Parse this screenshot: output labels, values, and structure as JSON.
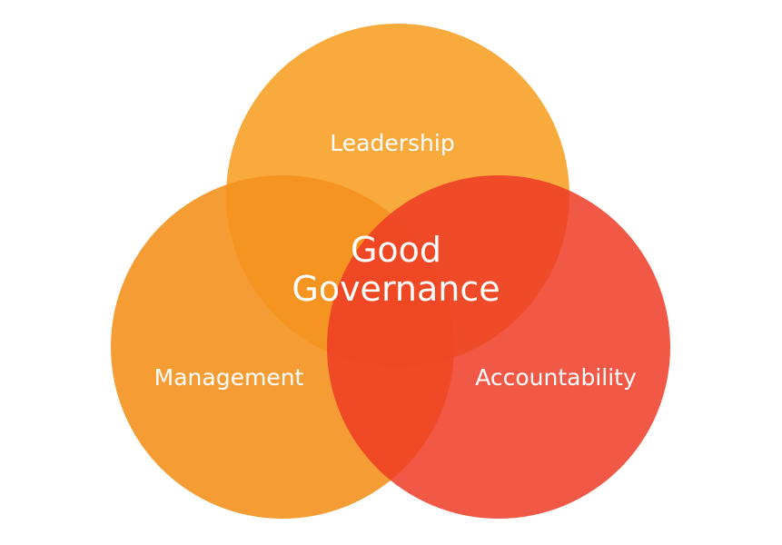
{
  "diagram": {
    "circles": [
      {
        "id": "leadership",
        "label": "Leadership",
        "color": "#F9A533",
        "opacity": 0.95
      },
      {
        "id": "management",
        "label": "Management",
        "color": "#F4911E",
        "opacity": 0.9
      },
      {
        "id": "accountability",
        "label": "Accountability",
        "color": "#EE3B24",
        "opacity": 0.85
      }
    ],
    "center": {
      "line1": "Good",
      "line2": "Governance"
    }
  }
}
